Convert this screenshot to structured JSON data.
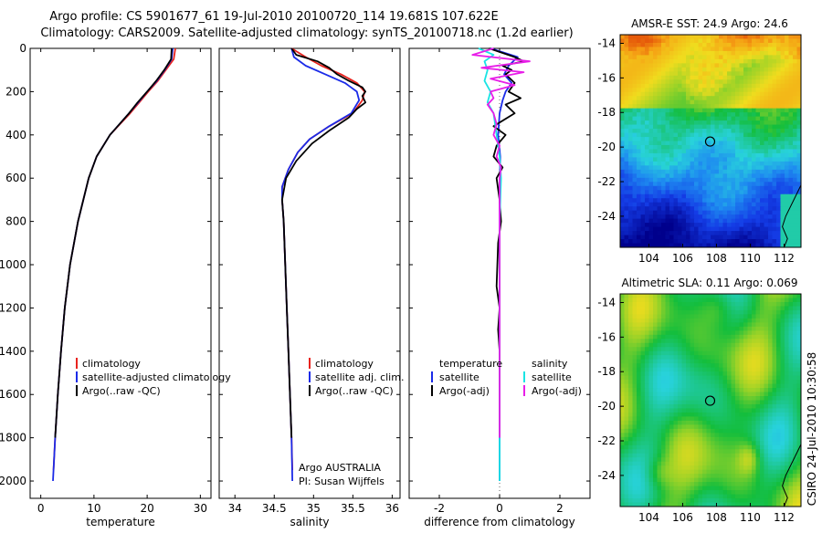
{
  "header": {
    "title_line1": "Argo profile: CS 5901677_61 19-Jul-2010 20100720_114 19.681S 107.622E",
    "title_line2": "Climatology: CARS2009. Satellite-adjusted climatology: synTS_20100718.nc (1.2d earlier)"
  },
  "colors": {
    "climatology": "#e8231e",
    "satellite": "#1b2be8",
    "argo": "#000000",
    "salinity_sat": "#19e4e4",
    "salinity_argo": "#e81ee8"
  },
  "chart_data": [
    {
      "id": "temperature",
      "type": "line",
      "xlabel": "temperature",
      "ylabel": "",
      "xlim": [
        -2,
        32
      ],
      "ylim": [
        2080,
        0
      ],
      "xticks": [
        0,
        10,
        20,
        30
      ],
      "yticks": [
        0,
        200,
        400,
        600,
        800,
        1000,
        1200,
        1400,
        1600,
        1800,
        2000
      ],
      "legend": [
        "climatology",
        "satellite-adjusted climatology",
        "Argo(..raw -QC)"
      ],
      "series": [
        {
          "name": "climatology",
          "color": "#e8231e",
          "depth": [
            0,
            50,
            100,
            150,
            200,
            250,
            300,
            400,
            500,
            600,
            800,
            1000,
            1200,
            1400,
            1600,
            1800,
            1950
          ],
          "values": [
            25.3,
            25.0,
            23.5,
            22.0,
            20.2,
            18.5,
            16.8,
            13.0,
            10.5,
            9.0,
            7.0,
            5.5,
            4.5,
            3.8,
            3.2,
            2.7,
            2.4
          ]
        },
        {
          "name": "satellite",
          "color": "#1b2be8",
          "depth": [
            0,
            50,
            100,
            150,
            200,
            250,
            300,
            400,
            500,
            600,
            800,
            1000,
            1200,
            1400,
            1600,
            1800,
            2000
          ],
          "values": [
            24.8,
            24.6,
            23.3,
            21.8,
            20.0,
            18.3,
            16.6,
            13.0,
            10.5,
            9.0,
            7.0,
            5.5,
            4.5,
            3.8,
            3.2,
            2.7,
            2.3
          ]
        },
        {
          "name": "argo",
          "color": "#000000",
          "depth": [
            0,
            50,
            100,
            150,
            200,
            250,
            300,
            400,
            500,
            600,
            800,
            1000,
            1200,
            1400,
            1600,
            1800
          ],
          "values": [
            24.6,
            24.5,
            23.2,
            21.7,
            20.0,
            18.2,
            16.6,
            13.0,
            10.5,
            9.0,
            7.0,
            5.5,
            4.5,
            3.8,
            3.2,
            2.7
          ]
        }
      ]
    },
    {
      "id": "salinity",
      "type": "line",
      "xlabel": "salinity",
      "ylabel": "",
      "xlim": [
        33.8,
        36.1
      ],
      "ylim": [
        2080,
        0
      ],
      "xticks": [
        34,
        34.5,
        35,
        35.5,
        36
      ],
      "legend": [
        "climatology",
        "satellite adj. clim.",
        "Argo(..raw -QC)"
      ],
      "annotations": [
        "Argo AUSTRALIA",
        "PI: Susan Wijffels"
      ],
      "series": [
        {
          "name": "climatology",
          "color": "#e8231e",
          "depth": [
            0,
            40,
            80,
            120,
            160,
            200,
            240,
            300,
            360,
            420,
            480,
            560,
            640,
            700,
            800,
            1000,
            1200,
            1400,
            1600,
            1800,
            1950
          ],
          "values": [
            34.72,
            34.9,
            35.1,
            35.35,
            35.55,
            35.65,
            35.62,
            35.5,
            35.2,
            34.95,
            34.8,
            34.68,
            34.6,
            34.6,
            34.62,
            34.64,
            34.66,
            34.68,
            34.7,
            34.72,
            34.73
          ]
        },
        {
          "name": "satellite",
          "color": "#1b2be8",
          "depth": [
            0,
            40,
            80,
            120,
            160,
            200,
            240,
            300,
            360,
            420,
            480,
            560,
            640,
            700,
            800,
            1000,
            1200,
            1400,
            1600,
            1800,
            2000
          ],
          "values": [
            34.72,
            34.75,
            34.9,
            35.15,
            35.4,
            35.55,
            35.58,
            35.48,
            35.2,
            34.95,
            34.8,
            34.68,
            34.6,
            34.6,
            34.62,
            34.64,
            34.66,
            34.68,
            34.7,
            34.72,
            34.73
          ]
        },
        {
          "name": "argo",
          "color": "#000000",
          "depth": [
            0,
            30,
            60,
            90,
            120,
            150,
            180,
            200,
            220,
            250,
            280,
            320,
            380,
            440,
            520,
            600,
            700,
            800,
            1000,
            1200,
            1400,
            1600,
            1800
          ],
          "values": [
            34.72,
            34.78,
            35.05,
            35.2,
            35.3,
            35.45,
            35.62,
            35.66,
            35.62,
            35.66,
            35.55,
            35.45,
            35.2,
            34.98,
            34.78,
            34.65,
            34.6,
            34.62,
            34.64,
            34.66,
            34.68,
            34.7,
            34.72
          ]
        }
      ]
    },
    {
      "id": "difference",
      "type": "line",
      "xlabel": "difference from climatology",
      "ylabel": "",
      "xlim": [
        -3,
        3
      ],
      "ylim": [
        2080,
        0
      ],
      "xticks": [
        -2,
        0,
        2
      ],
      "legend_headers": [
        "temperature",
        "salinity"
      ],
      "legend": [
        "satellite",
        "Argo(-adj)",
        "satellite",
        "Argo(-adj)"
      ],
      "series": [
        {
          "name": "temperature satellite",
          "color": "#1b2be8",
          "depth": [
            0,
            40,
            80,
            120,
            160,
            200,
            240,
            300,
            400,
            500,
            700,
            900,
            1200,
            1500,
            1800,
            2000
          ],
          "values": [
            -0.3,
            0.6,
            0.3,
            0.15,
            0.4,
            0.2,
            0.1,
            0.0,
            -0.05,
            0.02,
            0.0,
            0.0,
            0.0,
            0.0,
            0.0,
            0.0
          ]
        },
        {
          "name": "temperature Argo",
          "color": "#000000",
          "depth": [
            0,
            40,
            60,
            80,
            100,
            120,
            160,
            200,
            230,
            260,
            300,
            360,
            400,
            450,
            500,
            550,
            600,
            700,
            800,
            900,
            1100,
            1200,
            1300,
            1400,
            1500,
            1600,
            1700,
            1800
          ],
          "values": [
            -0.35,
            0.5,
            0.8,
            0.1,
            0.4,
            0.2,
            0.5,
            0.3,
            0.7,
            0.2,
            0.5,
            -0.2,
            0.2,
            -0.1,
            -0.2,
            0.1,
            -0.1,
            0.0,
            0.05,
            -0.05,
            -0.1,
            0.0,
            -0.05,
            0.0,
            0.0,
            0.0,
            0.0,
            0.0
          ]
        },
        {
          "name": "salinity satellite",
          "color": "#19e4e4",
          "depth": [
            0,
            30,
            60,
            100,
            150,
            200,
            250,
            300,
            400,
            500,
            600,
            800,
            1000,
            1400,
            1800,
            2000
          ],
          "values": [
            -0.7,
            -0.2,
            -0.5,
            -0.4,
            -0.5,
            -0.3,
            -0.4,
            -0.2,
            -0.1,
            0.0,
            0.05,
            0.0,
            0.0,
            0.0,
            0.0,
            0.0
          ]
        },
        {
          "name": "salinity Argo",
          "color": "#e81ee8",
          "depth": [
            0,
            30,
            60,
            90,
            110,
            140,
            170,
            200,
            230,
            260,
            300,
            350,
            400,
            450,
            500,
            550,
            600,
            700,
            800,
            1000,
            1200,
            1400,
            1600,
            1800
          ],
          "values": [
            -0.2,
            -0.9,
            1.0,
            -0.6,
            0.8,
            -0.3,
            0.5,
            -0.3,
            -0.2,
            -0.4,
            -0.2,
            -0.1,
            -0.2,
            0.0,
            -0.1,
            0.05,
            0.0,
            0.0,
            0.0,
            0.0,
            0.0,
            0.0,
            0.0,
            0.0
          ]
        }
      ]
    },
    {
      "id": "sst_map",
      "type": "heatmap",
      "title": "AMSR-E SST: 24.9 Argo: 24.6",
      "xlim": [
        102.3,
        113.0
      ],
      "ylim": [
        -25.8,
        -13.5
      ],
      "xticks": [
        104,
        106,
        108,
        110,
        112
      ],
      "yticks": [
        -14,
        -16,
        -18,
        -20,
        -22,
        -24
      ],
      "marker": {
        "lon": 107.622,
        "lat": -19.681
      }
    },
    {
      "id": "sla_map",
      "type": "heatmap",
      "title": "Altimetric SLA: 0.11 Argo: 0.069",
      "xlim": [
        102.3,
        113.0
      ],
      "ylim": [
        -25.8,
        -13.5
      ],
      "xticks": [
        104,
        106,
        108,
        110,
        112
      ],
      "yticks": [
        -14,
        -16,
        -18,
        -20,
        -22,
        -24
      ],
      "marker": {
        "lon": 107.622,
        "lat": -19.681
      }
    }
  ],
  "footer": {
    "credit": "CSIRO 24-Jul-2010 10:30:58"
  }
}
